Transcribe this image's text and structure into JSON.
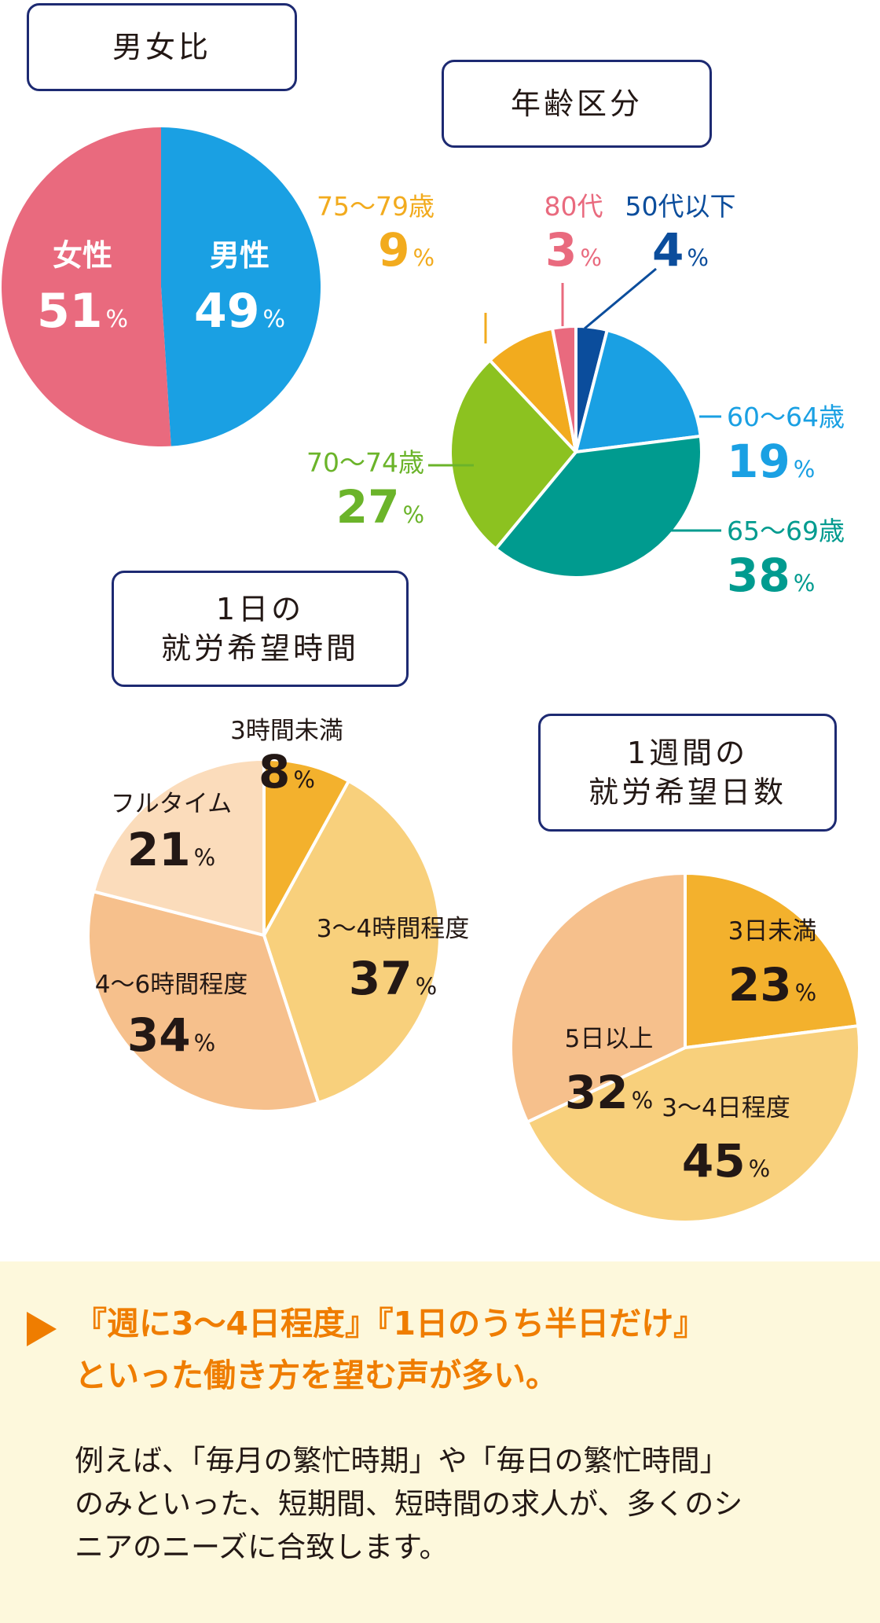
{
  "chart_data": [
    {
      "type": "pie",
      "title": "男女比",
      "slices": [
        {
          "label": "男性",
          "value": 49,
          "color": "#1aa0e3"
        },
        {
          "label": "女性",
          "value": 51,
          "color": "#e96a7e"
        }
      ],
      "unit": "%"
    },
    {
      "type": "pie",
      "title": "年齢区分",
      "slices": [
        {
          "label": "50代以下",
          "value": 4,
          "color": "#0b4d9c"
        },
        {
          "label": "60〜64歳",
          "value": 19,
          "color": "#1aa0e3"
        },
        {
          "label": "65〜69歳",
          "value": 38,
          "color": "#009b8f"
        },
        {
          "label": "70〜74歳",
          "value": 27,
          "color": "#8cc220"
        },
        {
          "label": "75〜79歳",
          "value": 9,
          "color": "#f2ab1e"
        },
        {
          "label": "80代",
          "value": 3,
          "color": "#e96a7e"
        }
      ],
      "unit": "%"
    },
    {
      "type": "pie",
      "title": "1日の就労希望時間",
      "slices": [
        {
          "label": "3時間未満",
          "value": 8,
          "color": "#f3b12d"
        },
        {
          "label": "3〜4時間程度",
          "value": 37,
          "color": "#f8d07c"
        },
        {
          "label": "4〜6時間程度",
          "value": 34,
          "color": "#f6c08c"
        },
        {
          "label": "フルタイム",
          "value": 21,
          "color": "#fbdcbb"
        }
      ],
      "unit": "%"
    },
    {
      "type": "pie",
      "title": "1週間の就労希望日数",
      "slices": [
        {
          "label": "3日未満",
          "value": 23,
          "color": "#f3b12d"
        },
        {
          "label": "3〜4日程度",
          "value": 45,
          "color": "#f8d07c"
        },
        {
          "label": "5日以上",
          "value": 32,
          "color": "#f6c08c"
        }
      ],
      "unit": "%"
    }
  ],
  "titles": {
    "gender": "男女比",
    "age": "年齢区分",
    "hours_line1": "1日の",
    "hours_line2": "就労希望時間",
    "days_line1": "1週間の",
    "days_line2": "就労希望日数"
  },
  "footer": {
    "headline_line1": "『週に3〜4日程度』『1日のうち半日だけ』",
    "headline_line2": "といった働き方を望む声が多い。",
    "body_line1": "例えば、「毎月の繁忙時期」や「毎日の繁忙時間」",
    "body_line2": "のみといった、短期間、短時間の求人が、多くのシ",
    "body_line3": "ニアのニーズに合致します。"
  }
}
